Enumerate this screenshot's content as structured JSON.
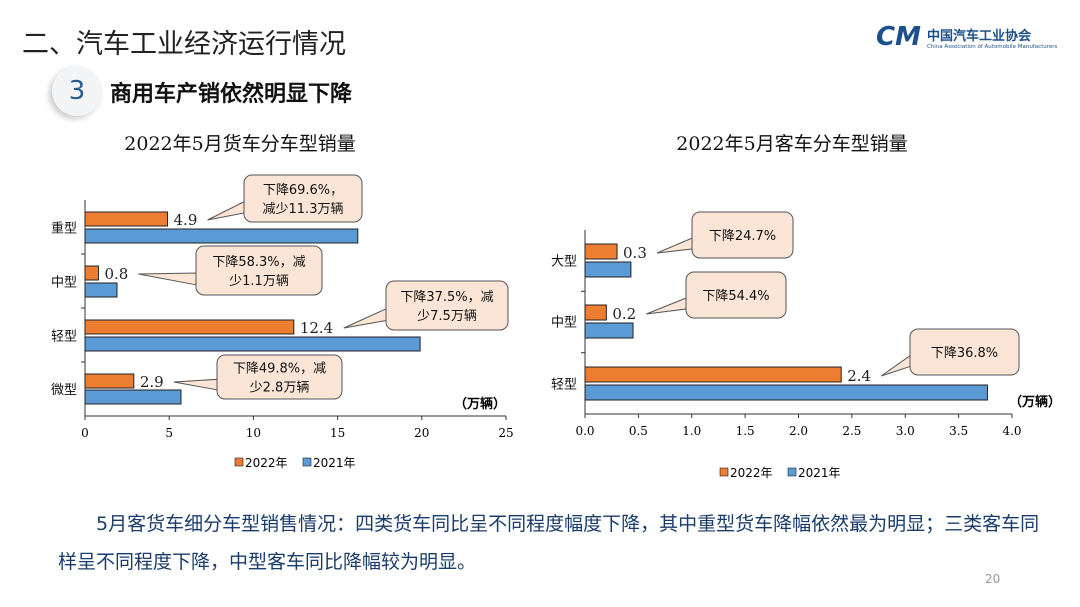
{
  "header": {
    "title": "二、汽车工业经济运行情况",
    "section_number": "3",
    "section_title": "商用车产销依然明显下降"
  },
  "logo": {
    "cn": "中国汽车工业协会",
    "en": "China Association of Automobile Manufacturers"
  },
  "colors": {
    "2022": "#ed7d31",
    "2021": "#5b9bd5",
    "callout": "#fbe5d6"
  },
  "chart_data": [
    {
      "type": "bar",
      "orientation": "horizontal",
      "title": "2022年5月货车分车型销量",
      "unit": "（万辆）",
      "categories": [
        "重型",
        "中型",
        "轻型",
        "微型"
      ],
      "series": [
        {
          "name": "2022年",
          "values": [
            4.9,
            0.8,
            12.4,
            2.9
          ]
        },
        {
          "name": "2021年",
          "values": [
            16.2,
            1.9,
            19.9,
            5.7
          ]
        }
      ],
      "xlim": [
        0,
        25
      ],
      "xticks": [
        "0",
        "5",
        "10",
        "15",
        "20",
        "25"
      ],
      "data_labels": [
        "4.9",
        "0.8",
        "12.4",
        "2.9"
      ],
      "annotations": [
        [
          "下降69.6%，",
          "减少11.3万辆"
        ],
        [
          "下降58.3%，减",
          "少1.1万辆"
        ],
        [
          "下降37.5%，减",
          "少7.5万辆"
        ],
        [
          "下降49.8%，减",
          "少2.8万辆"
        ]
      ],
      "legend": "bottom"
    },
    {
      "type": "bar",
      "orientation": "horizontal",
      "title": "2022年5月客车分车型销量",
      "unit": "（万辆）",
      "categories": [
        "大型",
        "中型",
        "轻型"
      ],
      "series": [
        {
          "name": "2022年",
          "values": [
            0.3,
            0.2,
            2.4
          ]
        },
        {
          "name": "2021年",
          "values": [
            0.43,
            0.45,
            3.77
          ]
        }
      ],
      "xlim": [
        0,
        4
      ],
      "xticks": [
        "0.0",
        "0.5",
        "1.0",
        "1.5",
        "2.0",
        "2.5",
        "3.0",
        "3.5",
        "4.0"
      ],
      "data_labels": [
        "0.3",
        "0.2",
        "2.4"
      ],
      "annotations": [
        [
          "下降24.7%"
        ],
        [
          "下降54.4%"
        ],
        [
          "下降36.8%"
        ]
      ],
      "legend": "bottom"
    }
  ],
  "footer": {
    "text": "5月客货车细分车型销售情况：四类货车同比呈不同程度幅度下降，其中重型货车降幅依然最为明显；三类客车同样呈不同程度下降，中型客车同比降幅较为明显。",
    "page": "20"
  }
}
